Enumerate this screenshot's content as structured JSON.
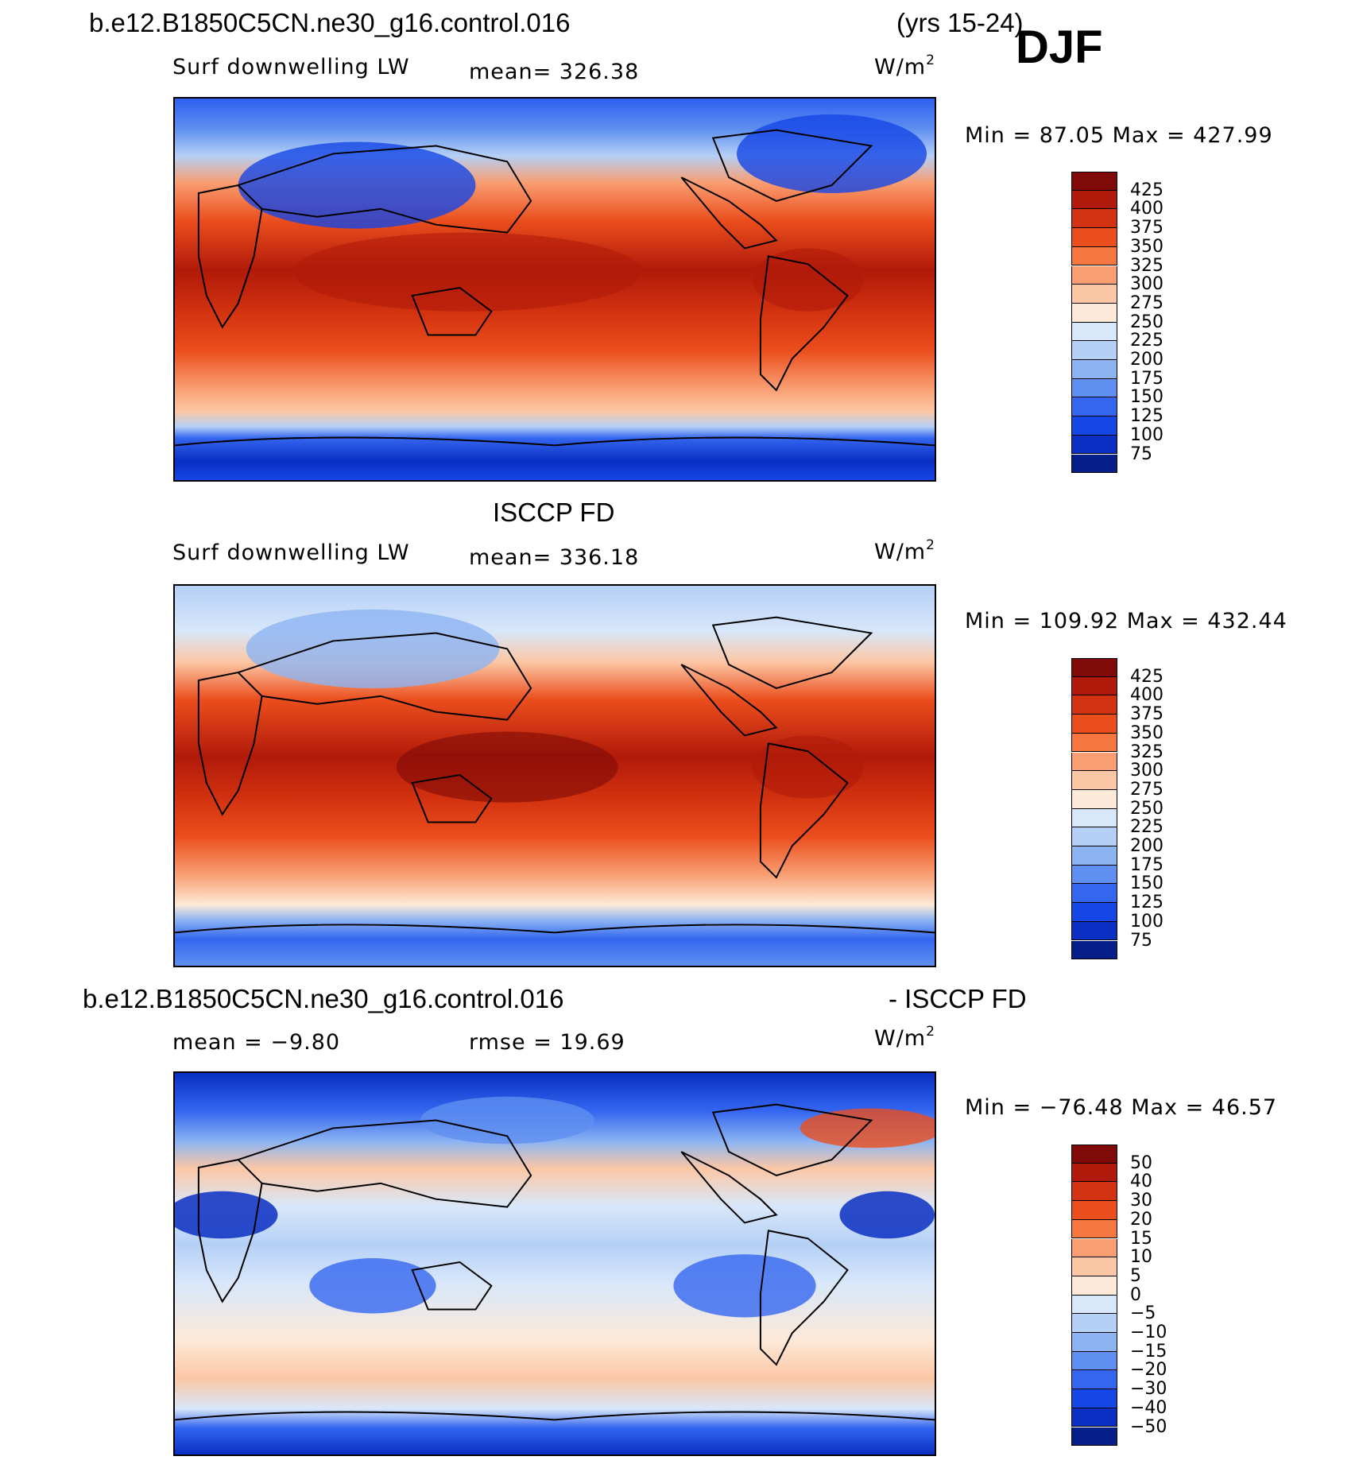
{
  "header": {
    "case_name": "b.e12.B1850C5CN.ne30_g16.control.016",
    "years": "(yrs 15-24)",
    "season": "DJF"
  },
  "panels": [
    {
      "title": "",
      "variable": "Surf downwelling LW",
      "stat1": "mean= 326.38",
      "stat2": "",
      "units": "W/m",
      "units_exp": "2",
      "minmax": "Min =   87.05  Max  =  427.99",
      "levels": [
        "425",
        "400",
        "375",
        "350",
        "325",
        "300",
        "275",
        "250",
        "225",
        "200",
        "175",
        "150",
        "125",
        "100",
        "75"
      ],
      "colors": [
        "#7f0a07",
        "#b11a0a",
        "#d2320f",
        "#eb4e1d",
        "#f5773f",
        "#f99e72",
        "#fcc7a5",
        "#fde9d8",
        "#d8e7fa",
        "#b5d0f6",
        "#8db4f2",
        "#5f8ff0",
        "#3466f0",
        "#1546e6",
        "#0a2fc2",
        "#061e8a"
      ],
      "minmax_stats": {
        "min": 87.05,
        "max": 427.99,
        "mean": 326.38
      }
    },
    {
      "title": "ISCCP FD",
      "variable": "Surf downwelling LW",
      "stat1": "mean= 336.18",
      "stat2": "",
      "units": "W/m",
      "units_exp": "2",
      "minmax": "Min  =  109.92  Max  =  432.44",
      "levels": [
        "425",
        "400",
        "375",
        "350",
        "325",
        "300",
        "275",
        "250",
        "225",
        "200",
        "175",
        "150",
        "125",
        "100",
        "75"
      ],
      "colors": [
        "#7f0a07",
        "#b11a0a",
        "#d2320f",
        "#eb4e1d",
        "#f5773f",
        "#f99e72",
        "#fcc7a5",
        "#fde9d8",
        "#d8e7fa",
        "#b5d0f6",
        "#8db4f2",
        "#5f8ff0",
        "#3466f0",
        "#1546e6",
        "#0a2fc2",
        "#061e8a"
      ],
      "minmax_stats": {
        "min": 109.92,
        "max": 432.44,
        "mean": 336.18
      }
    },
    {
      "title_left": "b.e12.B1850C5CN.ne30_g16.control.016",
      "title_right": "- ISCCP FD",
      "variable": "",
      "stat1": "mean  =   −9.80",
      "stat2": "rmse  =   19.69",
      "units": "W/m",
      "units_exp": "2",
      "minmax": "Min  =  −76.48  Max  =   46.57",
      "levels": [
        "50",
        "40",
        "30",
        "20",
        "15",
        "10",
        "5",
        "0",
        "−5",
        "−10",
        "−15",
        "−20",
        "−30",
        "−40",
        "−50"
      ],
      "colors": [
        "#7f0a07",
        "#b11a0a",
        "#d2320f",
        "#eb4e1d",
        "#f5773f",
        "#f99e72",
        "#fcc7a5",
        "#fde9d8",
        "#d8e7fa",
        "#b5d0f6",
        "#8db4f2",
        "#5f8ff0",
        "#3466f0",
        "#1546e6",
        "#0a2fc2",
        "#061e8a"
      ],
      "minmax_stats": {
        "min": -76.48,
        "max": 46.57,
        "mean": -9.8,
        "rmse": 19.69
      }
    }
  ]
}
